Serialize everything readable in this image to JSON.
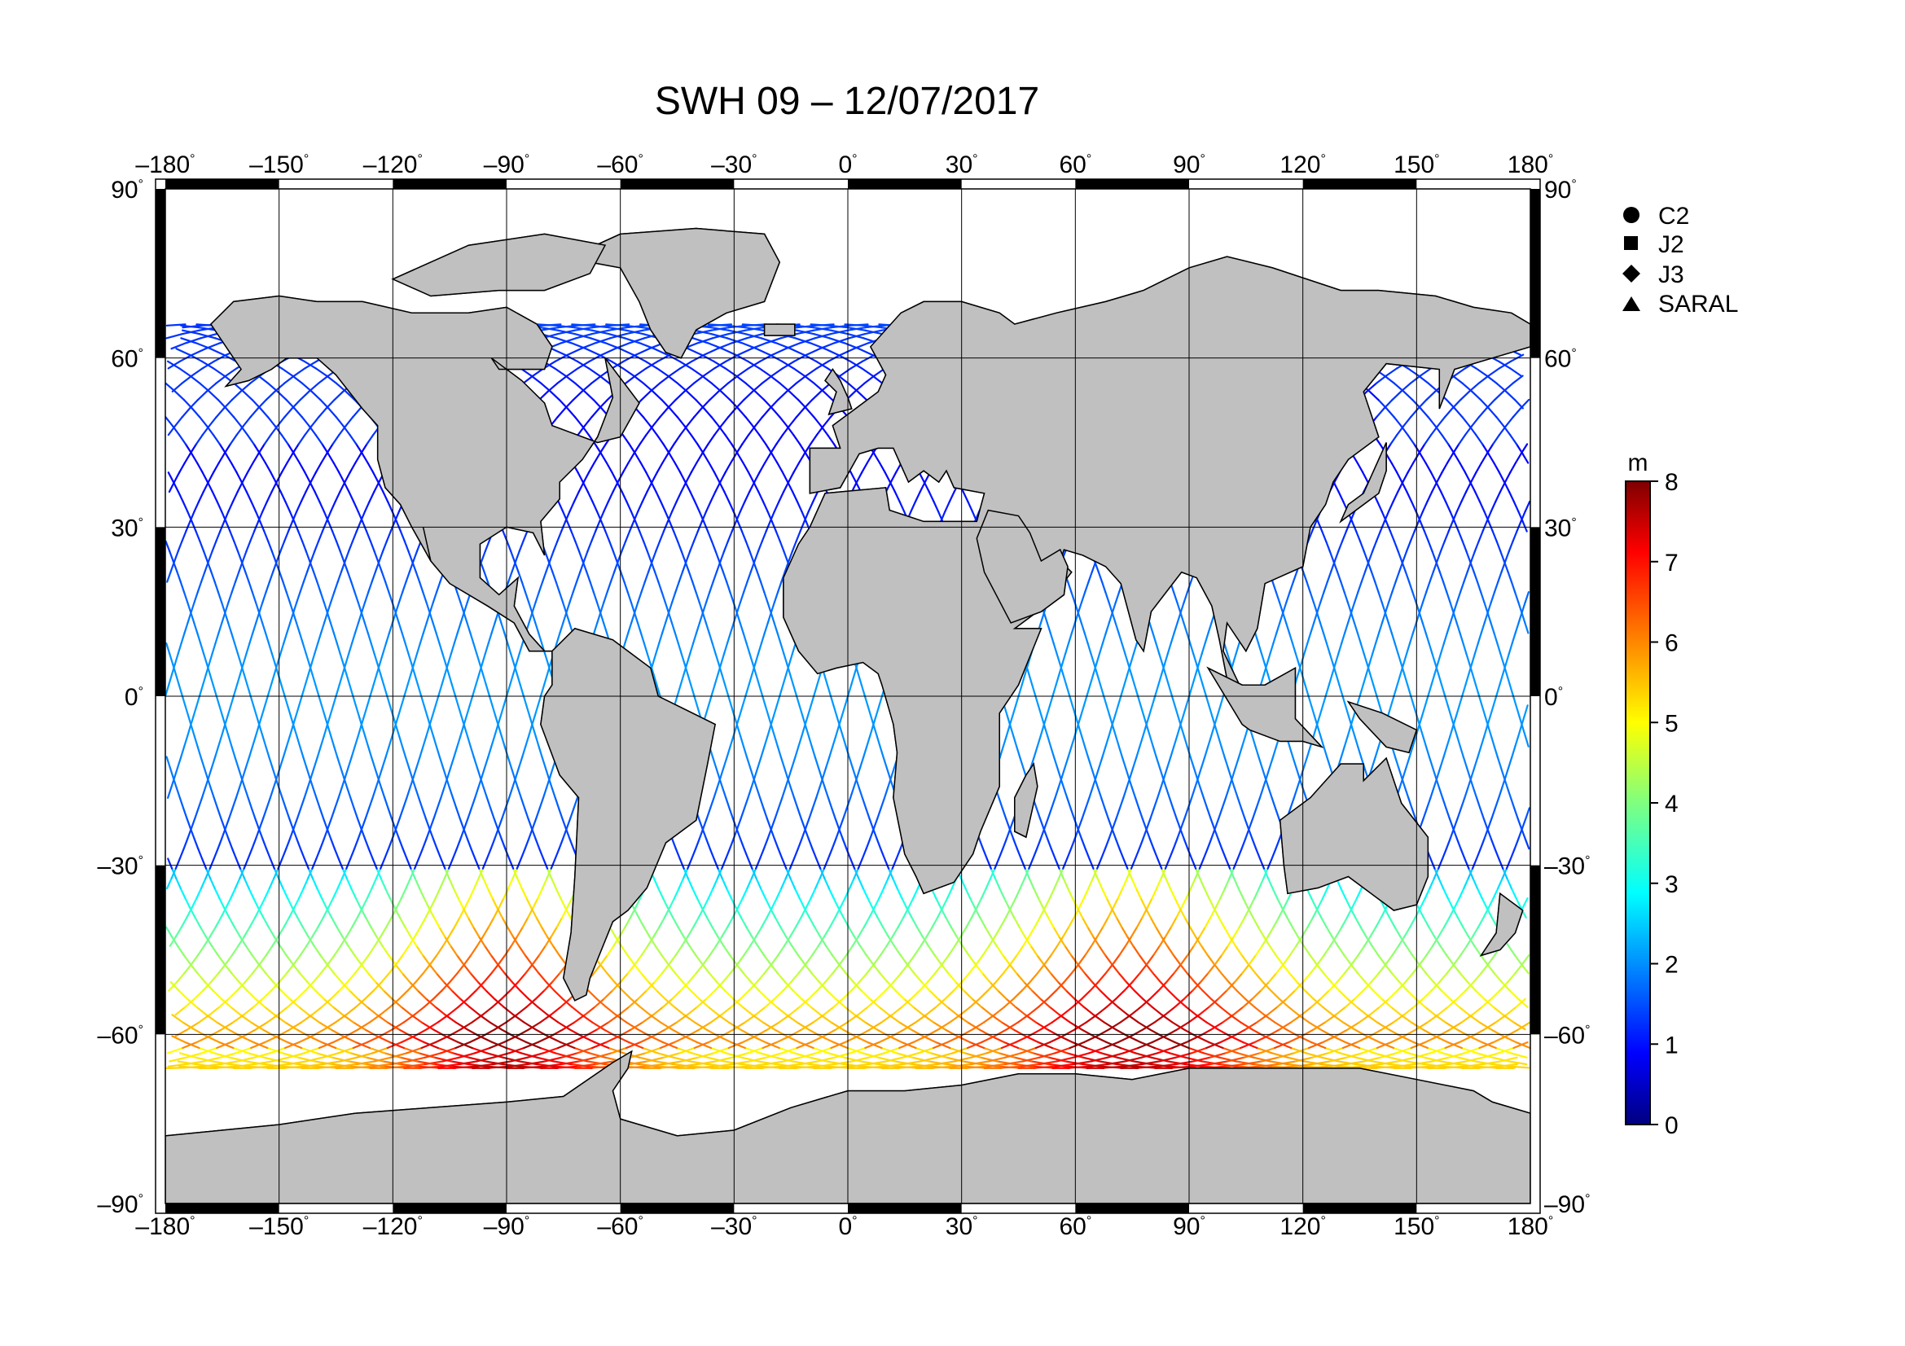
{
  "title": "SWH 09 – 12/07/2017",
  "map": {
    "lon_ticks": [
      "–180",
      "–150",
      "–120",
      "–90",
      "–60",
      "–30",
      "0",
      "30",
      "60",
      "90",
      "120",
      "150",
      "180"
    ],
    "lat_ticks": [
      "90",
      "60",
      "30",
      "0",
      "–30",
      "–60",
      "–90"
    ],
    "lon_range": [
      -180,
      180
    ],
    "lat_range": [
      -90,
      90
    ],
    "grid": true,
    "land_color": "#c0c0c0",
    "ocean_color": "#ffffff"
  },
  "legend": {
    "position": "top-right",
    "items": [
      {
        "label": "C2",
        "icon": "circle-icon"
      },
      {
        "label": "J2",
        "icon": "square-icon"
      },
      {
        "label": "J3",
        "icon": "diamond-icon"
      },
      {
        "label": "SARAL",
        "icon": "triangle-icon"
      }
    ]
  },
  "colorbar": {
    "unit": "m",
    "min": 0,
    "max": 8,
    "ticks": [
      "0",
      "1",
      "2",
      "3",
      "4",
      "5",
      "6",
      "7",
      "8"
    ],
    "colormap": "jet"
  }
}
